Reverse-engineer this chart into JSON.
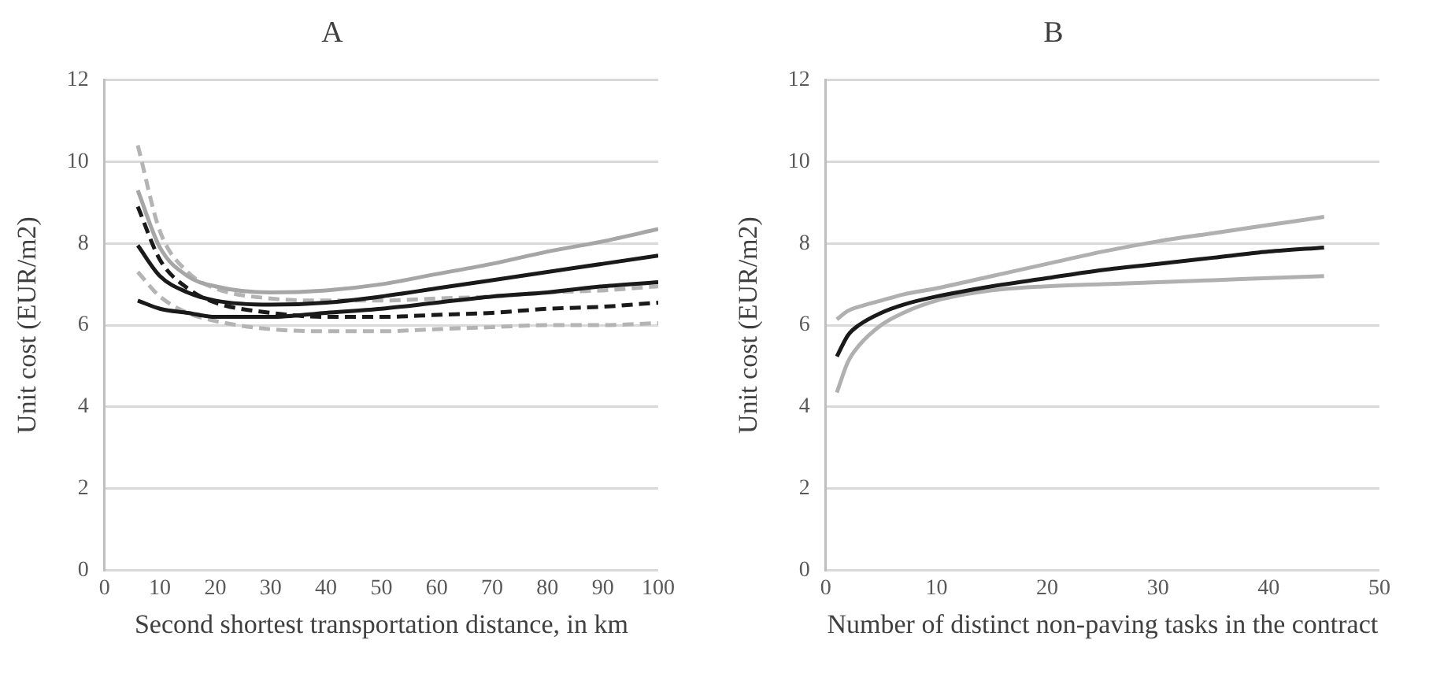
{
  "chart_data": [
    {
      "type": "line",
      "title": "A",
      "xlabel": "Second shortest transportation distance, in km",
      "ylabel": "Unit cost (EUR/m2)",
      "xlim": [
        0,
        100
      ],
      "xticks": [
        0,
        10,
        20,
        30,
        40,
        50,
        60,
        70,
        80,
        90,
        100
      ],
      "ylim": [
        0,
        12
      ],
      "yticks": [
        0,
        2,
        4,
        6,
        8,
        10,
        12
      ],
      "grid": "y",
      "legend": false,
      "marker": "none",
      "x": [
        6,
        10,
        15,
        20,
        30,
        40,
        50,
        60,
        70,
        80,
        90,
        100
      ],
      "series": [
        {
          "color": "#a6a6a6",
          "line_style": "solid",
          "values": [
            9.3,
            7.9,
            7.2,
            6.95,
            6.8,
            6.85,
            7.0,
            7.25,
            7.5,
            7.8,
            8.05,
            8.35
          ]
        },
        {
          "color": "#1a1a1a",
          "line_style": "solid",
          "values": [
            7.95,
            7.2,
            6.8,
            6.6,
            6.5,
            6.55,
            6.7,
            6.9,
            7.1,
            7.3,
            7.5,
            7.7
          ]
        },
        {
          "color": "#1a1a1a",
          "line_style": "solid",
          "values": [
            6.6,
            6.4,
            6.3,
            6.2,
            6.2,
            6.3,
            6.4,
            6.55,
            6.7,
            6.8,
            6.95,
            7.05
          ]
        },
        {
          "color": "#1a1a1a",
          "line_style": "dashed",
          "values": [
            8.9,
            7.6,
            6.9,
            6.55,
            6.3,
            6.2,
            6.2,
            6.25,
            6.3,
            6.4,
            6.45,
            6.55
          ]
        },
        {
          "color": "#b4b4b4",
          "line_style": "dashed",
          "values": [
            10.4,
            8.3,
            7.3,
            6.9,
            6.65,
            6.6,
            6.6,
            6.65,
            6.7,
            6.8,
            6.85,
            6.95
          ]
        },
        {
          "color": "#b4b4b4",
          "line_style": "dashed",
          "values": [
            7.3,
            6.7,
            6.3,
            6.1,
            5.9,
            5.85,
            5.85,
            5.9,
            5.95,
            6.0,
            6.0,
            6.05
          ]
        }
      ]
    },
    {
      "type": "line",
      "title": "B",
      "xlabel": "Number of distinct non-paving tasks in the contract",
      "ylabel": "Unit cost (EUR/m2)",
      "xlim": [
        0,
        50
      ],
      "xticks": [
        0,
        10,
        20,
        30,
        40,
        50
      ],
      "ylim": [
        0,
        12
      ],
      "yticks": [
        0,
        2,
        4,
        6,
        8,
        10,
        12
      ],
      "grid": "y",
      "legend": false,
      "marker": "none",
      "x": [
        1,
        2,
        3,
        5,
        7,
        10,
        15,
        20,
        25,
        30,
        35,
        40,
        45
      ],
      "series": [
        {
          "color": "#1a1a1a",
          "line_style": "solid",
          "values": [
            5.23,
            5.75,
            6.0,
            6.3,
            6.5,
            6.7,
            6.95,
            7.15,
            7.35,
            7.5,
            7.65,
            7.8,
            7.9
          ]
        },
        {
          "color": "#b0b0b0",
          "line_style": "solid",
          "values": [
            6.14,
            6.35,
            6.45,
            6.6,
            6.75,
            6.9,
            7.2,
            7.5,
            7.8,
            8.05,
            8.25,
            8.45,
            8.65
          ]
        },
        {
          "color": "#b0b0b0",
          "line_style": "solid",
          "values": [
            4.35,
            5.1,
            5.5,
            6.0,
            6.3,
            6.6,
            6.85,
            6.95,
            7.0,
            7.05,
            7.1,
            7.15,
            7.2
          ]
        }
      ]
    }
  ]
}
